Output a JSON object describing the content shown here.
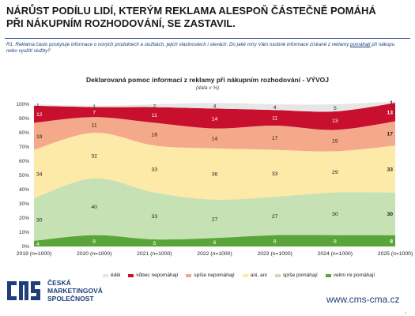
{
  "title": "NÁRŮST PODÍLU LIDÍ, KTERÝM REKLAMA ALESPOŇ ČÁSTEČNĚ POMÁHÁ PŘI NÁKUPNÍM ROZHODOVÁNÍ, SE ZASTAVIL.",
  "question_pre": "R1. Reklama často poskytuje informace o nových produktech a službách, jejich vlastnostech i slevách. Do jaké míry Vám osobně informace získané z reklamy ",
  "question_underlined": "pomáhají",
  "question_post": " při nákupu nebo využití služby?",
  "chart_data": {
    "type": "area",
    "stacked": true,
    "title": "Deklarovaná pomoc informací z reklamy při nákupním rozhodování - VÝVOJ",
    "subtitle": "(data v %)",
    "categories": [
      "2019 (n=1000)",
      "2020 (n=1000)",
      "2021 (n=1000)",
      "2022 (n=1000)",
      "2023 (n=1000)",
      "2024 (n=1000)",
      "2025 (n=1000)"
    ],
    "y_ticks": [
      "0%",
      "10%",
      "20%",
      "30%",
      "40%",
      "50%",
      "60%",
      "70%",
      "80%",
      "90%",
      "100%"
    ],
    "ylim": [
      0,
      100
    ],
    "series": [
      {
        "name": "velmi mi pomáhají",
        "color": "#5aa53a",
        "values": [
          4,
          8,
          5,
          6,
          8,
          8,
          8
        ]
      },
      {
        "name": "spíše pomáhají",
        "color": "#c6e2b4",
        "values": [
          30,
          40,
          33,
          27,
          27,
          30,
          30
        ]
      },
      {
        "name": "ani, ani",
        "color": "#fde9a8",
        "values": [
          34,
          32,
          33,
          36,
          33,
          29,
          33
        ]
      },
      {
        "name": "spíše nepomáhají",
        "color": "#f4a98a",
        "values": [
          19,
          11,
          16,
          14,
          17,
          15,
          17
        ]
      },
      {
        "name": "vůbec nepomáhají",
        "color": "#c8102e",
        "values": [
          12,
          7,
          11,
          14,
          11,
          13,
          13
        ]
      },
      {
        "name": "ěděi",
        "color": "#e6e6e6",
        "values": [
          1,
          1,
          2,
          4,
          4,
          5,
          1
        ]
      }
    ],
    "legend_position": "bottom"
  },
  "logo": {
    "line1": "ČESKÁ",
    "line2": "MARKETINGOVÁ",
    "line3": "SPOLEČNOST"
  },
  "url": "www.cms-cma.cz",
  "page_number": "4"
}
